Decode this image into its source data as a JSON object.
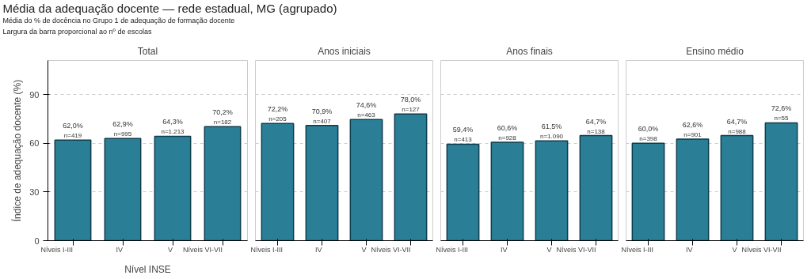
{
  "chart_data": [
    {
      "type": "bar",
      "title": "Total",
      "categories": [
        "Níveis I-III",
        "IV",
        "V",
        "Níveis VI-VII"
      ],
      "values": [
        62.0,
        62.9,
        64.3,
        70.2
      ],
      "value_labels": [
        "62,0%\nn=419",
        "62,9%\nn=995",
        "64,3%\nn=1.213",
        "70,2%\nn=182"
      ],
      "color": "#2a7f96",
      "ylim": [
        0,
        111
      ],
      "yticks": [
        0,
        30,
        60,
        90
      ],
      "grid": "y",
      "ylabel": "Índice de adequação docente (%)",
      "xlabel": "Nível INSE",
      "annotations": [
        "Média da adequação docente — rede estadual, MG (agrupado)",
        "Média do % de docência no Grupo 1 de adequação de formação docente",
        "Largura da barra proporcional ao nº de escolas"
      ]
    },
    {
      "type": "bar",
      "title": "Anos iniciais",
      "categories": [
        "Níveis I-III",
        "IV",
        "V",
        "Níveis VI-VII"
      ],
      "values": [
        72.2,
        70.9,
        74.6,
        78.0
      ],
      "value_labels": [
        "72,2%\nn=205",
        "70,9%\nn=407",
        "74,6%\nn=463",
        "78,0%\nn=127"
      ],
      "color": "#2a7f96",
      "ylim": [
        0,
        111
      ],
      "yticks": [
        0,
        30,
        60,
        90
      ],
      "grid": "y",
      "tick_labels": "x"
    },
    {
      "type": "bar",
      "title": "Anos finais",
      "categories": [
        "Níveis I-III",
        "IV",
        "V",
        "Níveis VI-VII"
      ],
      "values": [
        59.4,
        60.6,
        61.5,
        64.7
      ],
      "value_labels": [
        "59,4%\nn=413",
        "60,6%\nn=928",
        "61,5%\nn=1.090",
        "64,7%\nn=138"
      ],
      "color": "#2a7f96",
      "ylim": [
        0,
        111
      ],
      "yticks": [
        0,
        30,
        60,
        90
      ],
      "grid": "y",
      "tick_labels": "x"
    },
    {
      "type": "bar",
      "title": "Ensino médio",
      "categories": [
        "Níveis I-III",
        "IV",
        "V",
        "Níveis VI-VII"
      ],
      "values": [
        60.0,
        62.6,
        64.7,
        72.6
      ],
      "value_labels": [
        "60,0%\nn=398",
        "62,6%\nn=901",
        "64,7%\nn=988",
        "72,6%\nn=55"
      ],
      "color": "#2a7f96",
      "ylim": [
        0,
        111
      ],
      "yticks": [
        0,
        30,
        60,
        90
      ],
      "grid": "y",
      "tick_labels": "x"
    }
  ]
}
